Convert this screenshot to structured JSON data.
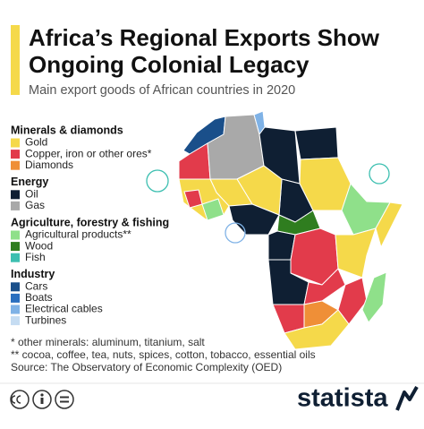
{
  "header": {
    "title_lines": [
      "Africa’s Regional Exports Show",
      "Ongoing Colonial Legacy"
    ],
    "subtitle": "Main export goods of African countries in 2020"
  },
  "legend": [
    {
      "title": "Minerals & diamonds",
      "items": [
        {
          "label": "Gold",
          "color": "#f5d94a"
        },
        {
          "label": "Copper, iron or other ores*",
          "color": "#e23b4b"
        },
        {
          "label": "Diamonds",
          "color": "#ef8f37"
        }
      ]
    },
    {
      "title": "Energy",
      "items": [
        {
          "label": "Oil",
          "color": "#0f1f33"
        },
        {
          "label": "Gas",
          "color": "#a9a9a9"
        }
      ]
    },
    {
      "title": "Agriculture, forestry & fishing",
      "items": [
        {
          "label": "Agricultural products**",
          "color": "#8fe08a"
        },
        {
          "label": "Wood",
          "color": "#2f7d1f"
        },
        {
          "label": "Fish",
          "color": "#3cbfb0"
        }
      ]
    },
    {
      "title": "Industry",
      "items": [
        {
          "label": "Cars",
          "color": "#1a4f8a"
        },
        {
          "label": "Boats",
          "color": "#2a6fbf"
        },
        {
          "label": "Electrical cables",
          "color": "#7fb2e6"
        },
        {
          "label": "Turbines",
          "color": "#c5dcf2"
        }
      ]
    }
  ],
  "footnotes": [
    "*  other minerals: aluminum, titanium, salt",
    "** cocoa, coffee, tea, nuts, spices, cotton, tobacco, essential oils",
    "Source: The Observatory of Economic Complexity (OED)"
  ],
  "brand": "statista"
}
